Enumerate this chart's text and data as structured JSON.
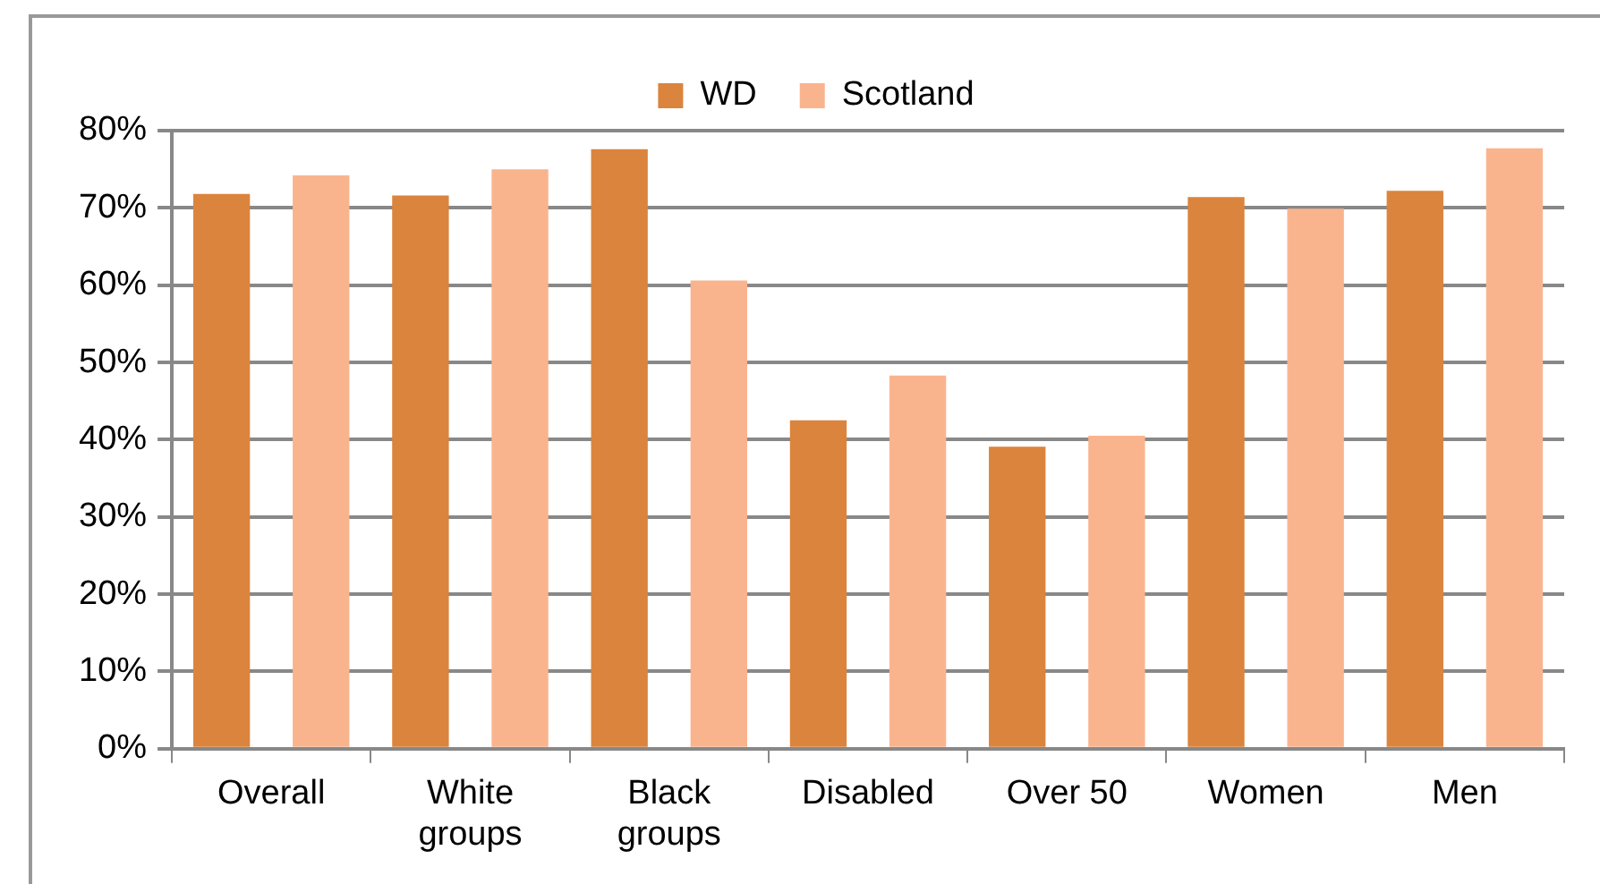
{
  "chart_data": {
    "type": "bar",
    "categories": [
      "Overall",
      "White groups",
      "Black groups",
      "Disabled",
      "Over 50",
      "Women",
      "Men"
    ],
    "series": [
      {
        "name": "WD",
        "color": "#db843d",
        "values": [
          71.8,
          71.6,
          77.6,
          42.5,
          39.1,
          71.4,
          72.2
        ]
      },
      {
        "name": "Scotland",
        "color": "#f9b48e",
        "values": [
          74.2,
          75.0,
          60.6,
          48.3,
          40.5,
          69.9,
          77.7
        ]
      }
    ],
    "ylim": [
      0,
      80
    ],
    "yticks": [
      {
        "value": 0,
        "label": "0%"
      },
      {
        "value": 10,
        "label": "10%"
      },
      {
        "value": 20,
        "label": "20%"
      },
      {
        "value": 30,
        "label": "30%"
      },
      {
        "value": 40,
        "label": "40%"
      },
      {
        "value": 50,
        "label": "50%"
      },
      {
        "value": 60,
        "label": "60%"
      },
      {
        "value": 70,
        "label": "70%"
      },
      {
        "value": 80,
        "label": "80%"
      }
    ],
    "grid": "y",
    "legend": "top"
  }
}
